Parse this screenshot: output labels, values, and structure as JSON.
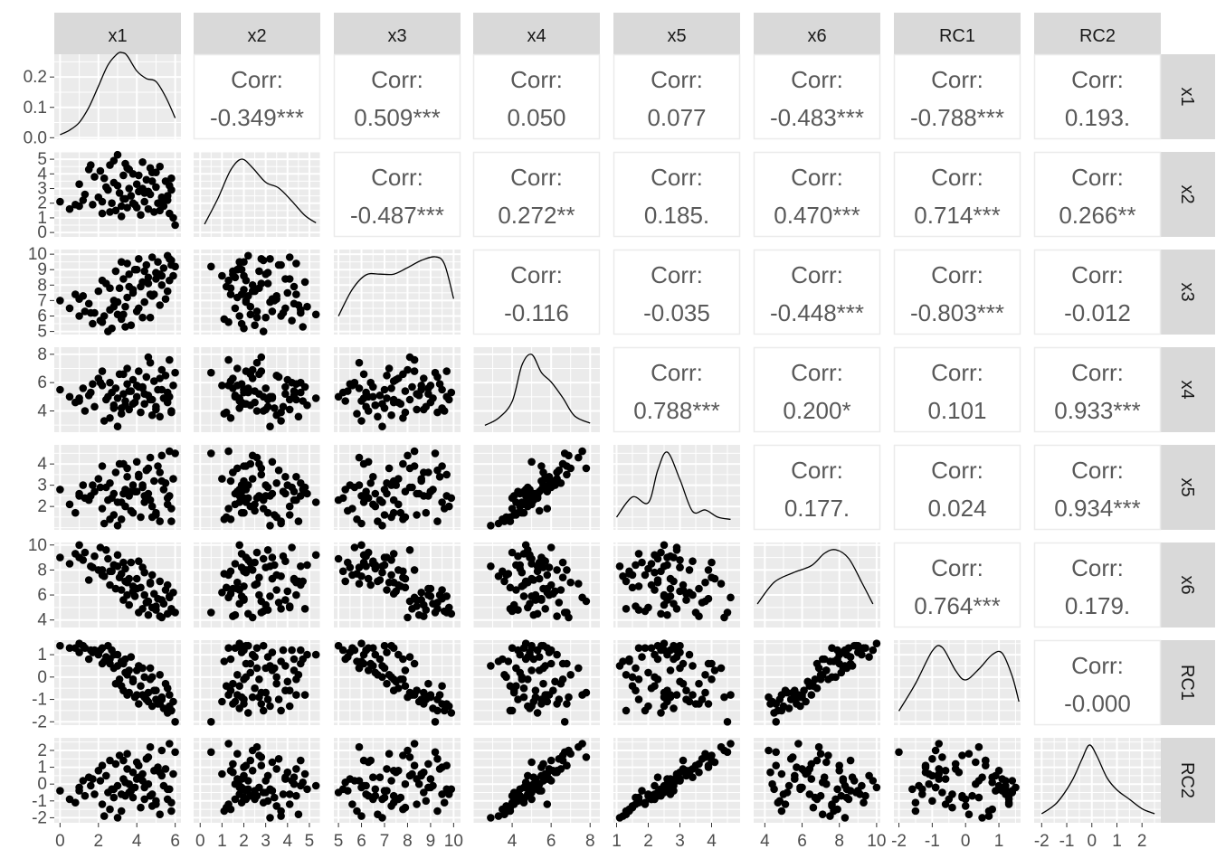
{
  "chart_data": {
    "type": "scatter",
    "variables": [
      "x1",
      "x2",
      "x3",
      "x4",
      "x5",
      "x6",
      "RC1",
      "RC2"
    ],
    "corr_label": "Corr:",
    "correlations": [
      {
        "row": "x1",
        "col": "x2",
        "text": "-0.349***"
      },
      {
        "row": "x1",
        "col": "x3",
        "text": "0.509***"
      },
      {
        "row": "x1",
        "col": "x4",
        "text": "0.050"
      },
      {
        "row": "x1",
        "col": "x5",
        "text": "0.077"
      },
      {
        "row": "x1",
        "col": "x6",
        "text": "-0.483***"
      },
      {
        "row": "x1",
        "col": "RC1",
        "text": "-0.788***"
      },
      {
        "row": "x1",
        "col": "RC2",
        "text": "0.193."
      },
      {
        "row": "x2",
        "col": "x3",
        "text": "-0.487***"
      },
      {
        "row": "x2",
        "col": "x4",
        "text": "0.272**"
      },
      {
        "row": "x2",
        "col": "x5",
        "text": "0.185."
      },
      {
        "row": "x2",
        "col": "x6",
        "text": "0.470***"
      },
      {
        "row": "x2",
        "col": "RC1",
        "text": "0.714***"
      },
      {
        "row": "x2",
        "col": "RC2",
        "text": "0.266**"
      },
      {
        "row": "x3",
        "col": "x4",
        "text": "-0.116"
      },
      {
        "row": "x3",
        "col": "x5",
        "text": "-0.035"
      },
      {
        "row": "x3",
        "col": "x6",
        "text": "-0.448***"
      },
      {
        "row": "x3",
        "col": "RC1",
        "text": "-0.803***"
      },
      {
        "row": "x3",
        "col": "RC2",
        "text": "-0.012"
      },
      {
        "row": "x4",
        "col": "x5",
        "text": "0.788***"
      },
      {
        "row": "x4",
        "col": "x6",
        "text": "0.200*"
      },
      {
        "row": "x4",
        "col": "RC1",
        "text": "0.101"
      },
      {
        "row": "x4",
        "col": "RC2",
        "text": "0.933***"
      },
      {
        "row": "x5",
        "col": "x6",
        "text": "0.177."
      },
      {
        "row": "x5",
        "col": "RC1",
        "text": "0.024"
      },
      {
        "row": "x5",
        "col": "RC2",
        "text": "0.934***"
      },
      {
        "row": "x6",
        "col": "RC1",
        "text": "0.764***"
      },
      {
        "row": "x6",
        "col": "RC2",
        "text": "0.179."
      },
      {
        "row": "RC1",
        "col": "RC2",
        "text": "-0.000"
      }
    ],
    "column_ranges": [
      [
        -0.3,
        6.3
      ],
      [
        -0.3,
        5.5
      ],
      [
        4.8,
        10.3
      ],
      [
        2.0,
        8.5
      ],
      [
        0.9,
        4.9
      ],
      [
        3.4,
        10.2
      ],
      [
        -2.15,
        1.65
      ],
      [
        -2.3,
        2.75
      ]
    ],
    "x_ticks": [
      [
        0,
        2,
        4,
        6
      ],
      [
        0,
        1,
        2,
        3,
        4,
        5
      ],
      [
        5,
        6,
        7,
        8,
        9,
        10
      ],
      [
        4,
        6,
        8
      ],
      [
        1,
        2,
        3,
        4
      ],
      [
        4,
        6,
        8,
        10
      ],
      [
        -2,
        -1,
        0,
        1
      ],
      [
        -2,
        -1,
        0,
        1,
        2
      ]
    ],
    "y_ticks": [
      {
        "values": [
          0.0,
          0.1,
          0.2
        ],
        "labels": [
          "0.0",
          "0.1",
          "0.2"
        ],
        "range": [
          -0.005,
          0.275
        ]
      },
      {
        "values": [
          0,
          1,
          2,
          3,
          4,
          5
        ],
        "labels": [
          "0",
          "1",
          "2",
          "3",
          "4",
          "5"
        ],
        "range": [
          -0.3,
          5.5
        ]
      },
      {
        "values": [
          5,
          6,
          7,
          8,
          9,
          10
        ],
        "labels": [
          "5",
          "6",
          "7",
          "8",
          "9",
          "10"
        ],
        "range": [
          4.8,
          10.3
        ]
      },
      {
        "values": [
          4,
          6,
          8
        ],
        "labels": [
          "4",
          "6",
          "8"
        ],
        "range": [
          2.5,
          8.5
        ]
      },
      {
        "values": [
          2,
          3,
          4
        ],
        "labels": [
          "2",
          "3",
          "4"
        ],
        "range": [
          0.9,
          4.9
        ]
      },
      {
        "values": [
          4,
          6,
          8,
          10
        ],
        "labels": [
          "4",
          "6",
          "8",
          "10"
        ],
        "range": [
          3.4,
          10.2
        ]
      },
      {
        "values": [
          -2,
          -1,
          0,
          1
        ],
        "labels": [
          "-2",
          "-1",
          "0",
          "1"
        ],
        "range": [
          -2.15,
          1.65
        ]
      },
      {
        "values": [
          -2,
          -1,
          0,
          1,
          2
        ],
        "labels": [
          "-2",
          "-1",
          "0",
          "1",
          "2"
        ],
        "range": [
          -2.3,
          2.75
        ]
      }
    ],
    "density_curves": [
      {
        "var": "x1",
        "x": [
          0,
          0.5,
          1,
          1.5,
          2,
          2.5,
          3,
          3.25,
          3.5,
          4,
          4.5,
          5,
          5.5,
          6
        ],
        "y": [
          0.01,
          0.025,
          0.05,
          0.1,
          0.17,
          0.24,
          0.277,
          0.28,
          0.27,
          0.22,
          0.195,
          0.185,
          0.135,
          0.065
        ]
      },
      {
        "var": "x2",
        "x": [
          0.2,
          0.8,
          1.4,
          1.9,
          2.4,
          3.0,
          3.6,
          4.2,
          4.8,
          5.3
        ],
        "y": [
          0.1,
          0.45,
          0.85,
          1.0,
          0.88,
          0.68,
          0.6,
          0.42,
          0.22,
          0.12
        ]
      },
      {
        "var": "x3",
        "x": [
          5.0,
          5.6,
          6.2,
          6.8,
          7.4,
          8.0,
          8.6,
          9.2,
          9.6,
          10.0
        ],
        "y": [
          0.18,
          0.55,
          0.75,
          0.76,
          0.76,
          0.85,
          0.95,
          1.0,
          0.9,
          0.42
        ]
      },
      {
        "var": "x4",
        "x": [
          2.6,
          3.3,
          4.0,
          4.5,
          5.0,
          5.5,
          6.0,
          6.6,
          7.2,
          8.0
        ],
        "y": [
          0.02,
          0.12,
          0.35,
          0.85,
          1.0,
          0.75,
          0.62,
          0.4,
          0.15,
          0.05
        ]
      },
      {
        "var": "x5",
        "x": [
          1.0,
          1.5,
          2.0,
          2.3,
          2.6,
          3.0,
          3.4,
          3.8,
          4.2,
          4.6
        ],
        "y": [
          0.1,
          0.38,
          0.3,
          0.75,
          1.0,
          0.62,
          0.18,
          0.2,
          0.1,
          0.07
        ]
      },
      {
        "var": "x6",
        "x": [
          3.6,
          4.5,
          5.5,
          6.5,
          7.2,
          7.8,
          8.5,
          9.2,
          9.8
        ],
        "y": [
          0.25,
          0.55,
          0.68,
          0.78,
          0.95,
          1.0,
          0.88,
          0.55,
          0.25
        ]
      },
      {
        "var": "RC1",
        "x": [
          -2.0,
          -1.5,
          -1.0,
          -0.7,
          -0.3,
          0.0,
          0.4,
          0.8,
          1.1,
          1.4,
          1.6
        ],
        "y": [
          0.12,
          0.5,
          0.95,
          1.0,
          0.68,
          0.55,
          0.7,
          0.9,
          0.92,
          0.6,
          0.25
        ]
      },
      {
        "var": "RC2",
        "x": [
          -2.0,
          -1.4,
          -0.8,
          -0.4,
          -0.1,
          0.2,
          0.6,
          1.0,
          1.5,
          2.0,
          2.5
        ],
        "y": [
          0.05,
          0.2,
          0.5,
          0.8,
          1.0,
          0.85,
          0.55,
          0.38,
          0.25,
          0.12,
          0.05
        ]
      }
    ],
    "observations": [
      [
        0.0,
        2.1,
        7.0,
        5.5,
        2.8,
        9.0,
        1.4,
        -0.4
      ],
      [
        0.5,
        1.6,
        6.5,
        5.0,
        2.1,
        8.5,
        1.3,
        -0.9
      ],
      [
        1.0,
        1.8,
        6.0,
        4.7,
        2.5,
        10.0,
        1.5,
        -0.2
      ],
      [
        1.2,
        2.2,
        7.3,
        5.6,
        3.0,
        8.8,
        1.4,
        0.2
      ],
      [
        1.5,
        4.3,
        6.8,
        5.1,
        2.3,
        7.2,
        0.8,
        0.4
      ],
      [
        1.8,
        3.8,
        6.2,
        4.3,
        2.7,
        9.1,
        1.2,
        -0.6
      ],
      [
        2.0,
        2.4,
        7.6,
        6.3,
        3.3,
        8.0,
        1.0,
        0.8
      ],
      [
        2.2,
        1.3,
        5.6,
        5.8,
        1.9,
        7.6,
        1.3,
        -1.2
      ],
      [
        2.4,
        3.1,
        8.1,
        4.8,
        2.9,
        9.6,
        0.9,
        0.5
      ],
      [
        2.6,
        4.6,
        6.4,
        6.0,
        3.1,
        6.8,
        0.6,
        1.4
      ],
      [
        2.7,
        2.0,
        5.2,
        5.3,
        2.4,
        7.9,
        1.2,
        -0.3
      ],
      [
        2.8,
        3.4,
        7.0,
        4.2,
        1.6,
        8.4,
        0.4,
        -0.8
      ],
      [
        2.9,
        1.5,
        8.9,
        5.6,
        3.6,
        6.5,
        -0.3,
        1.2
      ],
      [
        3.0,
        5.3,
        6.1,
        4.9,
        2.2,
        9.2,
        1.0,
        -0.1
      ],
      [
        3.1,
        2.7,
        7.8,
        6.6,
        4.0,
        7.4,
        -0.1,
        1.7
      ],
      [
        3.2,
        1.1,
        5.8,
        3.8,
        1.4,
        7.7,
        0.7,
        -1.6
      ],
      [
        3.3,
        3.9,
        8.4,
        5.2,
        2.6,
        5.6,
        -0.6,
        0.3
      ],
      [
        3.4,
        2.3,
        6.6,
        4.4,
        2.0,
        8.1,
        0.2,
        -0.7
      ],
      [
        3.5,
        4.4,
        9.4,
        5.9,
        3.4,
        6.0,
        -0.8,
        0.9
      ],
      [
        3.5,
        1.7,
        7.2,
        7.0,
        3.8,
        7.0,
        0.1,
        1.8
      ],
      [
        3.6,
        3.0,
        8.7,
        4.1,
        2.5,
        5.2,
        -0.7,
        -0.5
      ],
      [
        3.7,
        2.5,
        5.4,
        5.4,
        1.8,
        8.6,
        0.9,
        -0.4
      ],
      [
        3.8,
        4.0,
        7.5,
        6.2,
        3.0,
        6.3,
        -0.2,
        0.7
      ],
      [
        3.9,
        1.9,
        9.0,
        4.6,
        2.7,
        5.9,
        -0.9,
        -0.2
      ],
      [
        4.0,
        3.3,
        6.3,
        5.0,
        4.1,
        7.3,
        0.3,
        1.3
      ],
      [
        4.1,
        2.8,
        9.7,
        6.8,
        3.5,
        4.6,
        -1.2,
        1.1
      ],
      [
        4.2,
        1.2,
        7.9,
        3.9,
        1.5,
        6.6,
        -0.4,
        -1.4
      ],
      [
        4.3,
        4.8,
        8.2,
        5.7,
        2.9,
        4.9,
        -0.8,
        0.6
      ],
      [
        4.4,
        2.1,
        6.9,
        4.5,
        2.2,
        7.8,
        0.0,
        -0.9
      ],
      [
        4.5,
        3.6,
        9.3,
        6.4,
        3.7,
        5.4,
        -1.0,
        1.5
      ],
      [
        4.6,
        1.6,
        8.5,
        5.1,
        2.6,
        4.4,
        -1.1,
        0.0
      ],
      [
        4.7,
        2.6,
        5.9,
        7.4,
        4.3,
        6.9,
        0.4,
        2.2
      ],
      [
        4.8,
        4.1,
        9.8,
        4.8,
        2.0,
        5.0,
        -1.3,
        -0.6
      ],
      [
        4.9,
        1.4,
        7.4,
        6.1,
        3.2,
        6.1,
        -0.6,
        0.8
      ],
      [
        5.0,
        3.1,
        8.8,
        4.3,
        1.7,
        4.8,
        -1.0,
        -1.0
      ],
      [
        5.1,
        2.0,
        9.5,
        5.5,
        3.9,
        5.7,
        -1.2,
        1.0
      ],
      [
        5.2,
        4.5,
        6.7,
        3.6,
        1.3,
        7.1,
        0.1,
        -1.8
      ],
      [
        5.3,
        2.4,
        8.0,
        6.9,
        4.4,
        4.2,
        -0.9,
        2.0
      ],
      [
        5.4,
        1.8,
        9.1,
        4.9,
        2.8,
        5.3,
        -1.4,
        -0.1
      ],
      [
        5.5,
        3.5,
        7.1,
        6.5,
        3.1,
        6.4,
        -0.3,
        0.9
      ],
      [
        5.6,
        2.2,
        9.9,
        5.3,
        2.4,
        4.5,
        -1.6,
        -0.3
      ],
      [
        5.7,
        1.3,
        8.3,
        7.6,
        4.6,
        5.8,
        -0.8,
        2.4
      ],
      [
        5.8,
        2.9,
        9.6,
        4.0,
        1.9,
        4.7,
        -1.5,
        -1.1
      ],
      [
        5.9,
        1.0,
        8.6,
        5.8,
        3.3,
        6.2,
        -1.1,
        0.6
      ],
      [
        6.0,
        0.5,
        9.2,
        6.7,
        4.5,
        4.6,
        -2.0,
        1.9
      ],
      [
        1.3,
        2.6,
        6.3,
        4.0,
        2.4,
        9.4,
        1.3,
        -0.7
      ],
      [
        1.7,
        1.9,
        5.5,
        5.9,
        3.0,
        8.2,
        1.1,
        0.3
      ],
      [
        2.3,
        3.7,
        6.0,
        3.3,
        1.2,
        7.5,
        0.7,
        -1.9
      ],
      [
        2.5,
        2.9,
        5.0,
        5.0,
        2.3,
        8.9,
        1.4,
        -0.5
      ],
      [
        3.0,
        3.2,
        6.9,
        2.9,
        1.1,
        8.3,
        0.5,
        -2.0
      ],
      [
        3.4,
        4.7,
        5.3,
        4.7,
        2.8,
        7.1,
        0.8,
        0.1
      ],
      [
        3.8,
        2.0,
        7.7,
        4.5,
        1.7,
        6.7,
        -0.1,
        -0.8
      ],
      [
        4.1,
        3.9,
        6.5,
        5.7,
        3.4,
        8.7,
        0.5,
        0.4
      ],
      [
        4.4,
        2.7,
        8.9,
        5.2,
        2.5,
        6.0,
        -0.9,
        -0.2
      ],
      [
        4.8,
        3.5,
        7.3,
        3.7,
        1.5,
        7.6,
        0.0,
        -1.3
      ],
      [
        5.2,
        1.5,
        8.7,
        6.3,
        3.6,
        4.3,
        -1.2,
        0.7
      ],
      [
        5.6,
        2.5,
        7.6,
        4.6,
        2.1,
        6.8,
        -0.5,
        -0.9
      ],
      [
        2.1,
        4.2,
        5.7,
        6.0,
        2.9,
        9.8,
        1.2,
        0.2
      ],
      [
        2.8,
        4.9,
        6.6,
        4.4,
        2.6,
        8.4,
        1.0,
        -0.3
      ],
      [
        3.6,
        4.3,
        7.9,
        5.4,
        2.7,
        7.3,
        0.3,
        0.0
      ],
      [
        4.6,
        2.8,
        8.1,
        7.8,
        3.8,
        5.5,
        -0.7,
        1.6
      ],
      [
        1.0,
        3.3,
        7.1,
        4.9,
        2.6,
        9.0,
        1.1,
        -0.4
      ],
      [
        2.2,
        2.1,
        8.3,
        6.8,
        3.9,
        8.0,
        0.6,
        1.1
      ],
      [
        3.2,
        1.8,
        9.5,
        4.2,
        2.2,
        6.4,
        -0.4,
        -0.6
      ],
      [
        4.3,
        3.0,
        5.9,
        5.6,
        3.0,
        8.2,
        0.4,
        0.2
      ],
      [
        5.0,
        4.1,
        8.4,
        4.1,
        1.6,
        5.1,
        -0.6,
        -1.2
      ],
      [
        5.7,
        3.2,
        9.7,
        5.0,
        2.5,
        5.9,
        -1.3,
        -0.3
      ],
      [
        1.6,
        4.6,
        6.2,
        5.3,
        2.5,
        8.3,
        1.2,
        -0.1
      ],
      [
        2.6,
        1.4,
        7.8,
        3.5,
        1.4,
        7.9,
        0.8,
        -1.5
      ],
      [
        3.3,
        2.3,
        6.1,
        6.6,
        4.0,
        8.6,
        0.6,
        1.4
      ],
      [
        4.0,
        1.7,
        9.0,
        5.8,
        2.7,
        6.5,
        -0.8,
        0.3
      ],
      [
        4.7,
        4.4,
        7.4,
        4.8,
        2.3,
        7.0,
        -0.1,
        -0.7
      ],
      [
        5.3,
        2.0,
        8.6,
        5.5,
        3.2,
        5.6,
        -1.0,
        0.5
      ],
      [
        5.8,
        3.7,
        9.3,
        3.9,
        1.3,
        4.9,
        -1.5,
        -1.6
      ],
      [
        0.8,
        1.9,
        7.4,
        4.6,
        1.7,
        9.3,
        1.3,
        -1.1
      ]
    ]
  }
}
